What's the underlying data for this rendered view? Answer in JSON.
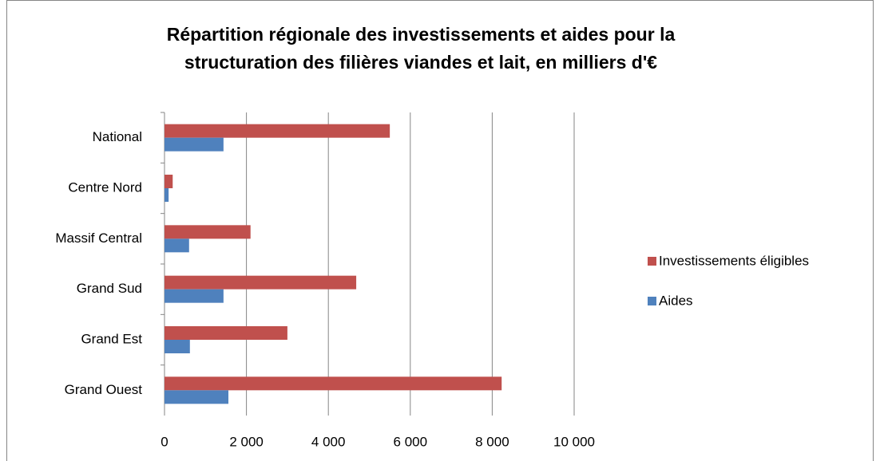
{
  "chart_data": {
    "type": "hbar",
    "title": [
      "Répartition régionale des investissements et aides pour la",
      "structuration des filières viandes et lait, en milliers d'€"
    ],
    "categories": [
      "National",
      "Centre Nord",
      "Massif Central",
      "Grand Sud",
      "Grand Est",
      "Grand Ouest"
    ],
    "series": [
      {
        "name": "Investissements éligibles",
        "color": "#c0504d",
        "values": [
          5500,
          200,
          2100,
          4680,
          3000,
          8230
        ]
      },
      {
        "name": "Aides",
        "color": "#4f81bd",
        "values": [
          1440,
          100,
          600,
          1440,
          620,
          1560
        ]
      }
    ],
    "xlim": [
      0,
      10000
    ],
    "xticks": [
      0,
      {
        "value": 2000,
        "label": "2 000"
      },
      {
        "value": 4000,
        "label": "4 000"
      },
      {
        "value": 6000,
        "label": "6 000"
      },
      {
        "value": 8000,
        "label": "8 000"
      },
      {
        "value": 10000,
        "label": "10 000"
      }
    ],
    "grid": true,
    "legend": "right"
  }
}
